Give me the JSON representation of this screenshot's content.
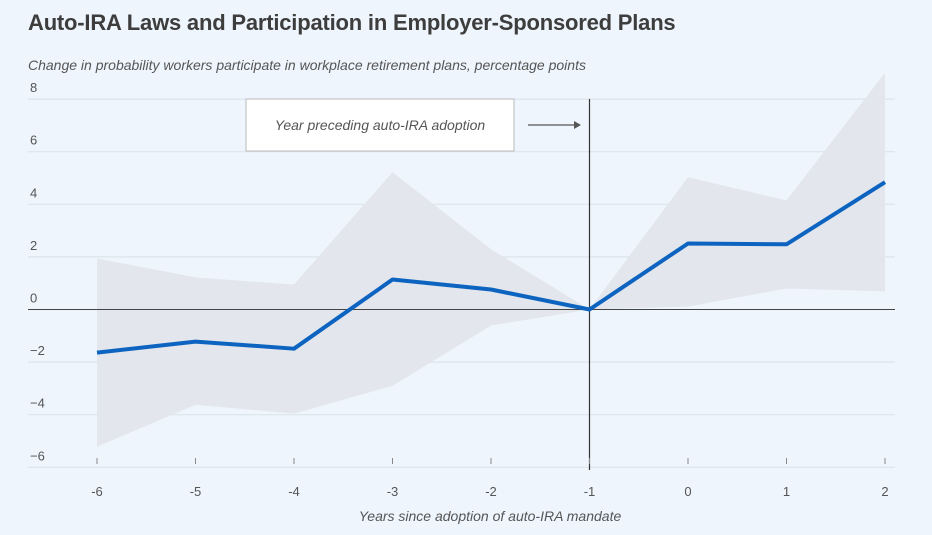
{
  "chart_data": {
    "type": "line",
    "title": "Auto-IRA Laws and Participation in Employer-Sponsored Plans",
    "subtitle": "Change in probability workers participate in workplace retirement plans, percentage points",
    "xlabel": "Years since adoption of auto-IRA mandate",
    "ylabel": "",
    "x": [
      -6,
      -5,
      -4,
      -3,
      -2,
      -1,
      0,
      1,
      2
    ],
    "x_tick_labels": [
      "-6",
      "-5",
      "-4",
      "-3",
      "-2",
      "-1",
      "0",
      "1",
      "2"
    ],
    "y_ticks": [
      8,
      6,
      4,
      2,
      0,
      -2,
      -4,
      -6
    ],
    "y_tick_labels": [
      "8",
      "6",
      "4",
      "2",
      "0",
      "−2",
      "−4",
      "−6"
    ],
    "ylim": [
      -6,
      8
    ],
    "xlim": [
      -6,
      2
    ],
    "grid": true,
    "series": [
      {
        "values": [
          -1.64,
          -1.22,
          -1.49,
          1.14,
          0.76,
          0,
          2.51,
          2.48,
          4.84
        ],
        "color": "#0d64c0"
      }
    ],
    "confidence_band": {
      "upper": [
        1.94,
        1.22,
        0.95,
        5.22,
        2.29,
        0,
        5.03,
        4.15,
        9.0
      ],
      "lower": [
        -5.22,
        -3.62,
        -3.96,
        -2.9,
        -0.61,
        0,
        0.11,
        0.8,
        0.69
      ],
      "color": "#e3e6ec"
    },
    "reference_line_x": -1,
    "annotation": "Year preceding auto-IRA adoption"
  }
}
